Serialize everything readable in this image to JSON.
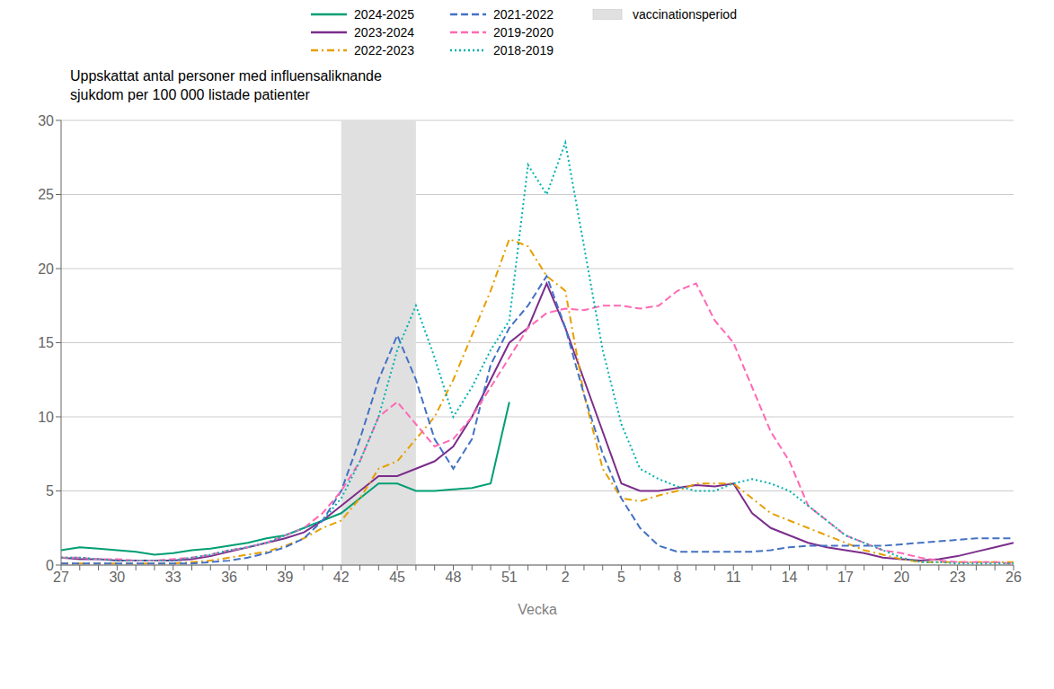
{
  "chart_data": {
    "type": "line",
    "title": "Uppskattat antal personer med influensaliknande\nsjukdom per 100 000 listade patienter",
    "xlabel": "Vecka",
    "x": [
      27,
      28,
      29,
      30,
      31,
      32,
      33,
      34,
      35,
      36,
      37,
      38,
      39,
      40,
      41,
      42,
      43,
      44,
      45,
      46,
      47,
      48,
      49,
      50,
      51,
      52,
      1,
      2,
      3,
      4,
      5,
      6,
      7,
      8,
      9,
      10,
      11,
      12,
      13,
      14,
      15,
      16,
      17,
      18,
      19,
      20,
      21,
      22,
      23,
      24,
      25,
      26
    ],
    "xticks": [
      27,
      30,
      33,
      36,
      39,
      42,
      45,
      48,
      51,
      2,
      5,
      8,
      11,
      14,
      17,
      20,
      23,
      26
    ],
    "ylim": [
      0,
      30
    ],
    "yticks": [
      0,
      5,
      10,
      15,
      20,
      25,
      30
    ],
    "grid": true,
    "legend": "top",
    "spans": [
      {
        "label": "vaccinationsperiod",
        "from": 42,
        "to": 46,
        "color": "#e0e0e0"
      }
    ],
    "series": [
      {
        "name": "2024-2025",
        "color": "#009E73",
        "line_style": "solid",
        "values": [
          1.0,
          1.2,
          1.1,
          1.0,
          0.9,
          0.7,
          0.8,
          1.0,
          1.1,
          1.3,
          1.5,
          1.8,
          2.0,
          2.5,
          3.0,
          3.5,
          4.5,
          5.5,
          5.5,
          5.0,
          5.0,
          5.1,
          5.2,
          5.5,
          11.0,
          null,
          null,
          null,
          null,
          null,
          null,
          null,
          null,
          null,
          null,
          null,
          null,
          null,
          null,
          null,
          null,
          null,
          null,
          null,
          null,
          null,
          null,
          null,
          null,
          null,
          null,
          null
        ]
      },
      {
        "name": "2023-2024",
        "color": "#7B2D8B",
        "line_style": "solid",
        "values": [
          0.5,
          0.4,
          0.4,
          0.3,
          0.3,
          0.3,
          0.3,
          0.4,
          0.6,
          0.9,
          1.2,
          1.5,
          1.8,
          2.2,
          3.0,
          4.0,
          5.0,
          6.0,
          6.0,
          6.5,
          7.0,
          8.0,
          10.0,
          12.5,
          15.0,
          16.0,
          19.0,
          16.0,
          12.5,
          9.0,
          5.5,
          5.0,
          5.0,
          5.2,
          5.4,
          5.3,
          5.5,
          3.5,
          2.5,
          2.0,
          1.5,
          1.2,
          1.0,
          0.8,
          0.5,
          0.4,
          0.3,
          0.4,
          0.6,
          0.9,
          1.2,
          1.5
        ]
      },
      {
        "name": "2022-2023",
        "color": "#E69F00",
        "line_style": "dashdot",
        "values": [
          0.1,
          0.1,
          0.1,
          0.1,
          0.1,
          0.1,
          0.1,
          0.2,
          0.3,
          0.5,
          0.7,
          0.9,
          1.3,
          1.8,
          2.5,
          3.0,
          4.5,
          6.5,
          7.0,
          8.5,
          10.0,
          12.5,
          15.5,
          18.5,
          22.0,
          21.5,
          19.5,
          18.5,
          11.5,
          6.5,
          4.5,
          4.3,
          4.7,
          5.0,
          5.5,
          5.5,
          5.5,
          4.5,
          3.5,
          3.0,
          2.5,
          2.0,
          1.5,
          1.0,
          0.7,
          0.4,
          0.2,
          0.2,
          0.2,
          0.2,
          0.2,
          0.2
        ]
      },
      {
        "name": "2021-2022",
        "color": "#4472C4",
        "line_style": "dashed",
        "values": [
          0.1,
          0.1,
          0.1,
          0.1,
          0.1,
          0.1,
          0.1,
          0.1,
          0.2,
          0.3,
          0.5,
          0.8,
          1.2,
          1.8,
          3.0,
          5.0,
          8.5,
          12.5,
          15.5,
          12.5,
          8.5,
          6.5,
          8.5,
          13.5,
          16.0,
          17.5,
          19.5,
          16.0,
          11.5,
          7.5,
          4.5,
          2.5,
          1.3,
          0.9,
          0.9,
          0.9,
          0.9,
          0.9,
          1.0,
          1.2,
          1.3,
          1.3,
          1.3,
          1.3,
          1.3,
          1.4,
          1.5,
          1.6,
          1.7,
          1.8,
          1.8,
          1.8
        ]
      },
      {
        "name": "2019-2020",
        "color": "#FF69B4",
        "line_style": "dashed",
        "values": [
          0.5,
          0.5,
          0.4,
          0.4,
          0.3,
          0.3,
          0.4,
          0.5,
          0.7,
          1.0,
          1.2,
          1.5,
          2.0,
          2.5,
          3.5,
          5.0,
          7.0,
          10.0,
          11.0,
          9.5,
          8.0,
          8.5,
          10.0,
          12.0,
          14.0,
          16.0,
          17.0,
          17.3,
          17.2,
          17.5,
          17.5,
          17.3,
          17.5,
          18.5,
          19.0,
          16.5,
          15.0,
          12.0,
          9.0,
          7.0,
          4.0,
          3.0,
          2.0,
          1.5,
          1.0,
          0.8,
          0.5,
          0.3,
          0.2,
          0.2,
          0.2,
          0.1
        ]
      },
      {
        "name": "2018-2019",
        "color": "#00B0B0",
        "line_style": "dotted",
        "values": [
          0.5,
          0.5,
          0.4,
          0.3,
          0.3,
          0.3,
          0.3,
          0.5,
          0.7,
          1.0,
          1.2,
          1.5,
          2.0,
          2.5,
          3.0,
          4.5,
          7.0,
          10.0,
          14.5,
          17.5,
          14.0,
          10.0,
          12.0,
          14.5,
          16.5,
          27.0,
          25.0,
          28.5,
          21.5,
          14.5,
          9.5,
          6.5,
          5.8,
          5.3,
          5.0,
          5.0,
          5.5,
          5.8,
          5.5,
          5.0,
          4.0,
          3.0,
          2.0,
          1.5,
          1.0,
          0.5,
          0.2,
          0.2,
          0.1,
          0.1,
          0.1,
          0.1
        ]
      }
    ]
  }
}
